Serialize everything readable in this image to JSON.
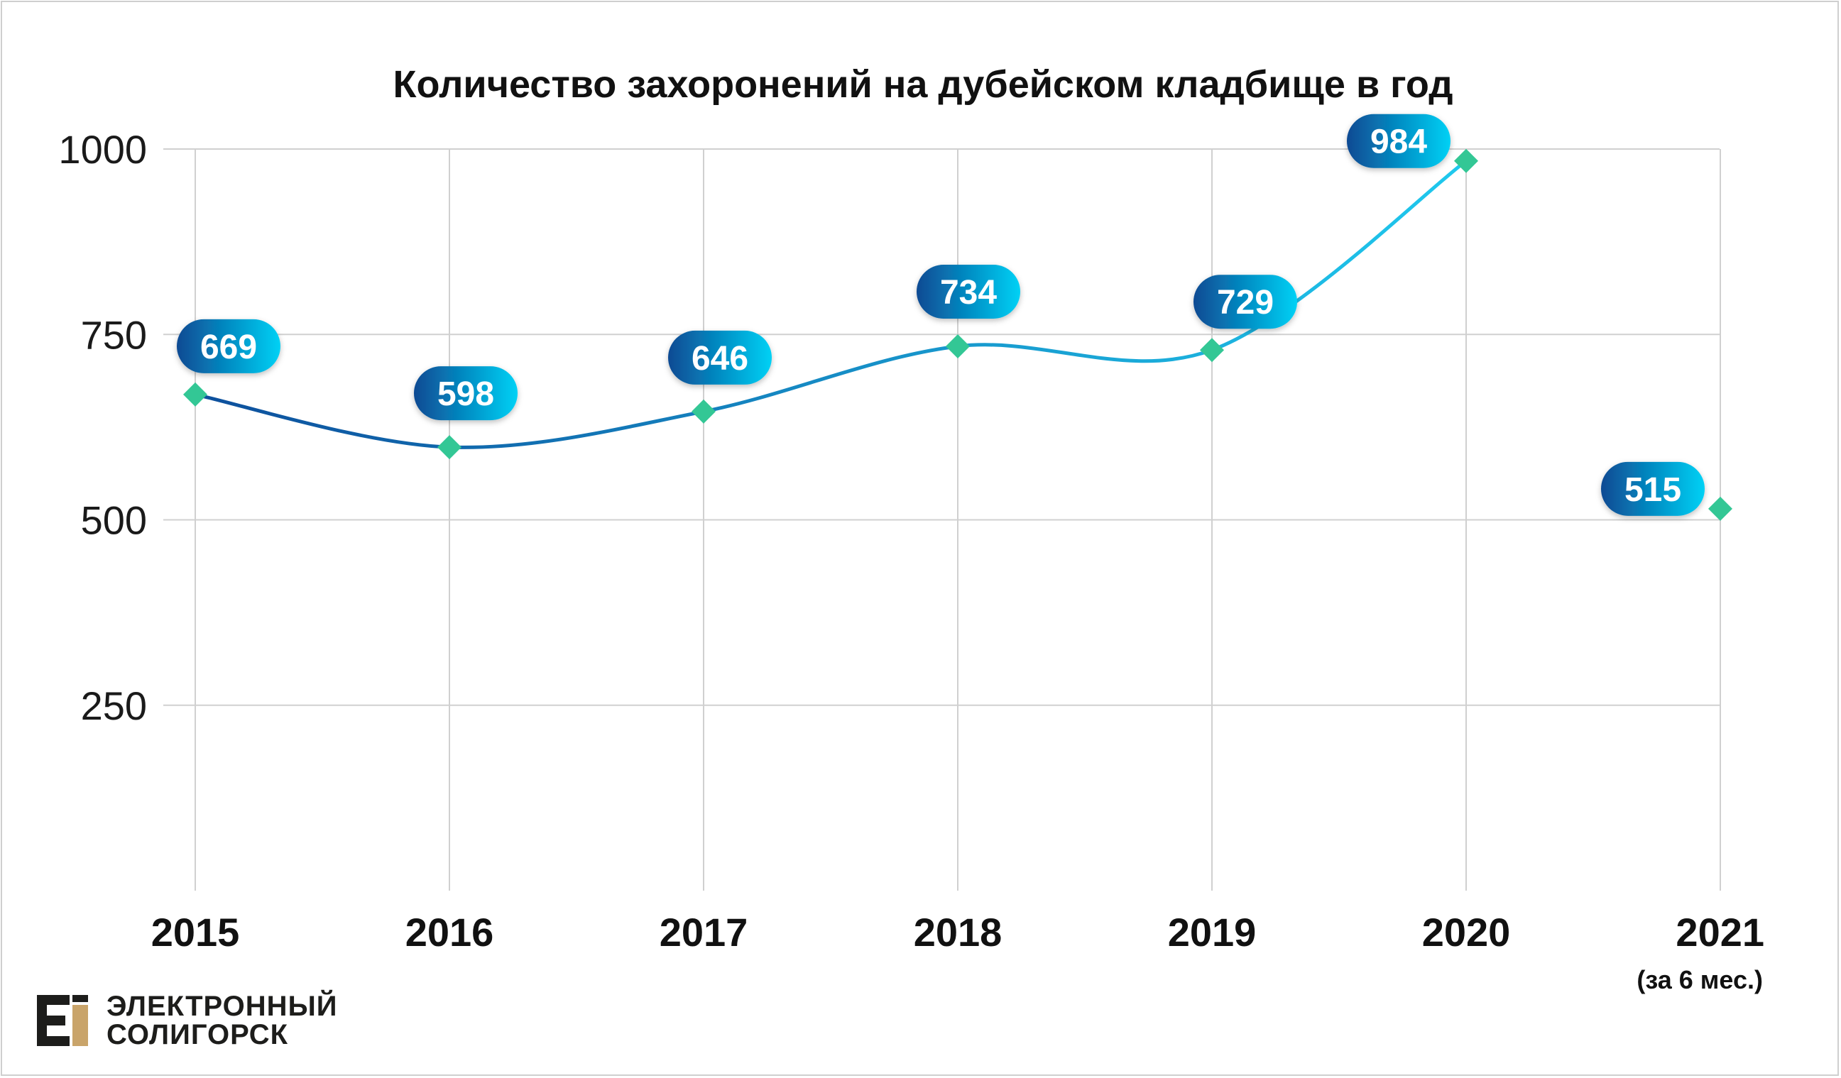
{
  "chart_data": {
    "type": "line",
    "title": "Количество захоронений на дубейском кладбище в год",
    "categories": [
      "2015",
      "2016",
      "2017",
      "2018",
      "2019",
      "2020",
      "2021"
    ],
    "category_sublabels": [
      "",
      "",
      "",
      "",
      "",
      "",
      "(за 6 мес.)"
    ],
    "values": [
      669,
      598,
      646,
      734,
      729,
      984,
      515
    ],
    "ylim": [
      0,
      1000
    ],
    "yticks": [
      "250",
      "500",
      "750",
      "1000"
    ],
    "connected_through": "2020",
    "grid": true,
    "colors": {
      "line_start": "#0d4f9c",
      "line_end": "#1fc9ee",
      "marker": "#33c795",
      "label_start": "#0a4a93",
      "label_end": "#00d1f5",
      "grid": "#d0d0d0"
    }
  },
  "branding": {
    "line1": "ЭЛЕКТРОННЫЙ",
    "line2": "СОЛИГОРСК",
    "logo_letter_color": "#1d1d1b",
    "logo_accent_color": "#c9a46a"
  }
}
